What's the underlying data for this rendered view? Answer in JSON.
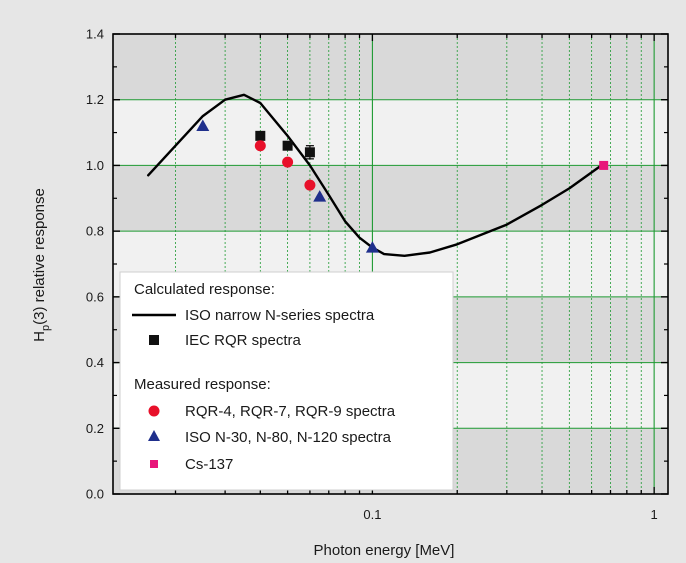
{
  "chart_data": {
    "type": "scatter",
    "xscale": "log",
    "xlim": [
      0.012,
      1.12
    ],
    "ylim": [
      0.0,
      1.4
    ],
    "grid": true,
    "background_bands": "alternating light/gray horizontal bands",
    "xlabel": "Photon energy [MeV]",
    "ylabel_main": "H",
    "ylabel_sub": "p",
    "ylabel_rest": "(3) relative response",
    "yticks": [
      {
        "value": 0.0,
        "label": "0.0"
      },
      {
        "value": 0.2,
        "label": "0.2"
      },
      {
        "value": 0.4,
        "label": "0.4"
      },
      {
        "value": 0.6,
        "label": "0.6"
      },
      {
        "value": 0.8,
        "label": "0.8"
      },
      {
        "value": 1.0,
        "label": "1.0"
      },
      {
        "value": 1.2,
        "label": "1.2"
      },
      {
        "value": 1.4,
        "label": "1.4"
      }
    ],
    "xticks_major": [
      {
        "value": 0.1,
        "label": "0.1"
      },
      {
        "value": 1.0,
        "label": "1"
      }
    ],
    "line_series": {
      "name": "ISO narrow N-series spectra",
      "color": "#000000",
      "points": [
        [
          0.016,
          0.97
        ],
        [
          0.02,
          1.06
        ],
        [
          0.025,
          1.15
        ],
        [
          0.03,
          1.2
        ],
        [
          0.035,
          1.215
        ],
        [
          0.04,
          1.19
        ],
        [
          0.05,
          1.09
        ],
        [
          0.06,
          1.0
        ],
        [
          0.07,
          0.91
        ],
        [
          0.08,
          0.83
        ],
        [
          0.09,
          0.78
        ],
        [
          0.1,
          0.75
        ],
        [
          0.11,
          0.73
        ],
        [
          0.13,
          0.725
        ],
        [
          0.16,
          0.735
        ],
        [
          0.2,
          0.76
        ],
        [
          0.3,
          0.82
        ],
        [
          0.4,
          0.88
        ],
        [
          0.5,
          0.93
        ],
        [
          0.65,
          1.0
        ]
      ]
    },
    "scatter_series": [
      {
        "name": "IEC RQR spectra",
        "marker": "square",
        "color": "#111111",
        "points": [
          [
            0.04,
            1.09
          ],
          [
            0.05,
            1.06
          ],
          [
            0.06,
            1.04
          ]
        ]
      },
      {
        "name": "RQR-4, RQR-7, RQR-9 spectra",
        "marker": "circle",
        "color": "#e8102a",
        "points": [
          [
            0.04,
            1.06
          ],
          [
            0.05,
            1.01
          ],
          [
            0.06,
            0.94
          ]
        ]
      },
      {
        "name": "ISO N-30, N-80, N-120 spectra",
        "marker": "triangle",
        "color": "#1f2f8c",
        "points": [
          [
            0.025,
            1.12
          ],
          [
            0.065,
            0.905
          ],
          [
            0.1,
            0.75
          ]
        ]
      },
      {
        "name": "Cs-137",
        "marker": "square-small",
        "color": "#e8157a",
        "points": [
          [
            0.662,
            1.0
          ]
        ]
      }
    ],
    "error_bars": [
      {
        "x": 0.06,
        "y": 1.04,
        "low": 1.02,
        "high": 1.06
      }
    ],
    "legend": {
      "placement": "lower-left",
      "heading_calculated": "Calculated response:",
      "heading_measured": "Measured response:",
      "line_label": "ISO narrow N-series spectra",
      "square_label": "IEC RQR spectra",
      "circle_label": "RQR-4, RQR-7, RQR-9 spectra",
      "triangle_label": "ISO N-30, N-80, N-120 spectra",
      "cs_label": "Cs-137"
    }
  }
}
